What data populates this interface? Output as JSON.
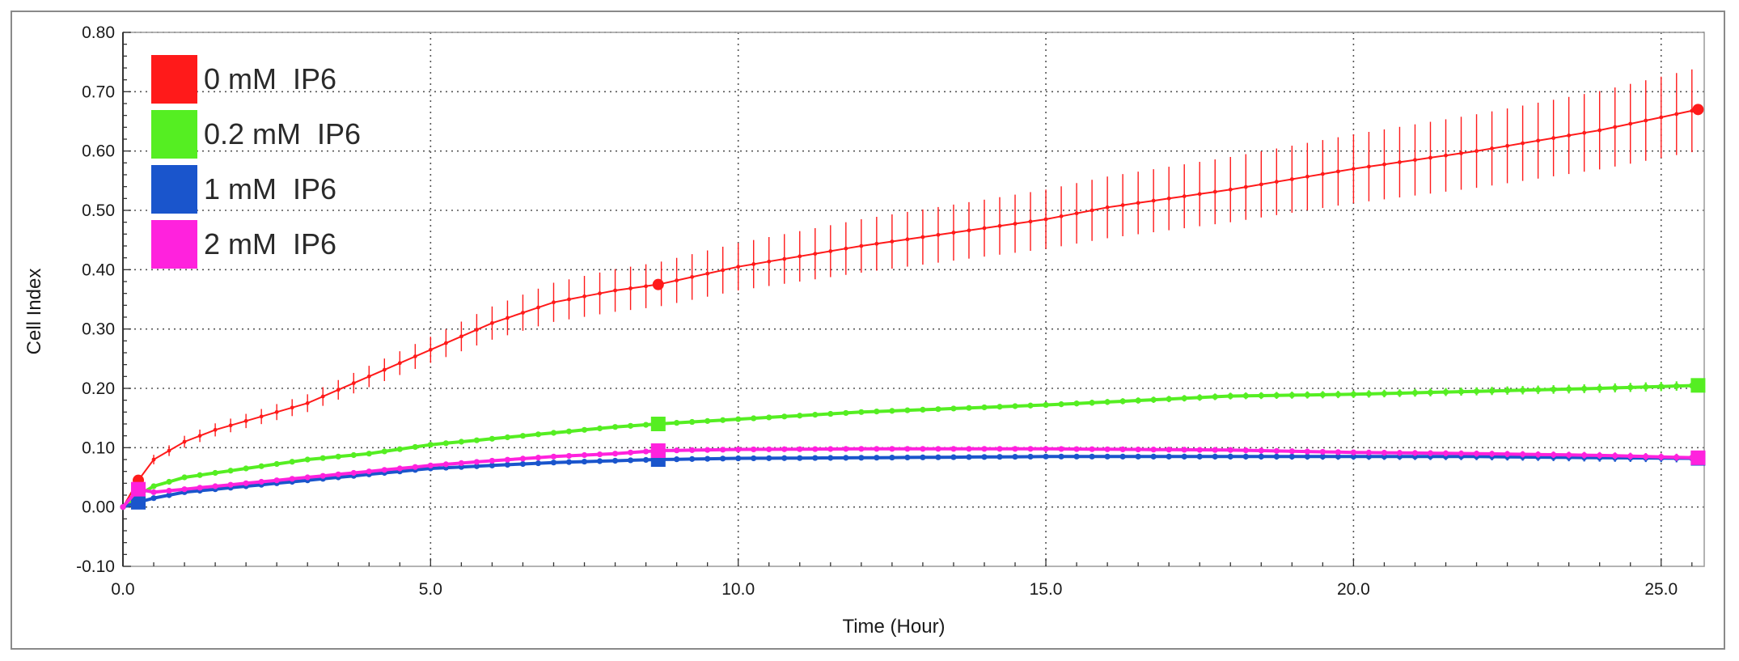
{
  "chart_data": {
    "type": "line",
    "title": "",
    "xlabel": "Time (Hour)",
    "ylabel": "Cell Index",
    "xlim": [
      0,
      25.7
    ],
    "ylim": [
      -0.1,
      0.8
    ],
    "x_ticks": [
      0,
      5,
      10,
      15,
      20,
      25
    ],
    "x_tick_labels": [
      "0.0",
      "5.0",
      "10.0",
      "15.0",
      "20.0",
      "25.0"
    ],
    "y_ticks": [
      -0.1,
      0,
      0.1,
      0.2,
      0.3,
      0.4,
      0.5,
      0.6,
      0.7,
      0.8
    ],
    "y_tick_labels": [
      "-0.10",
      "0.00",
      "0.10",
      "0.20",
      "0.30",
      "0.40",
      "0.50",
      "0.60",
      "0.70",
      "0.80"
    ],
    "grid": true,
    "grid_style": "dotted",
    "legend_position": "top-left",
    "series": [
      {
        "name": "0 mM  IP6",
        "color": "#ff1a1a",
        "points": [
          [
            0,
            0
          ],
          [
            0.25,
            0.045
          ],
          [
            0.5,
            0.08
          ],
          [
            1,
            0.11
          ],
          [
            1.5,
            0.13
          ],
          [
            2,
            0.145
          ],
          [
            3,
            0.175
          ],
          [
            4,
            0.22
          ],
          [
            5,
            0.265
          ],
          [
            6,
            0.31
          ],
          [
            7,
            0.345
          ],
          [
            8,
            0.365
          ],
          [
            8.7,
            0.375
          ],
          [
            10,
            0.405
          ],
          [
            12,
            0.44
          ],
          [
            14,
            0.47
          ],
          [
            15,
            0.485
          ],
          [
            16,
            0.505
          ],
          [
            18,
            0.535
          ],
          [
            20,
            0.57
          ],
          [
            22,
            0.6
          ],
          [
            24,
            0.635
          ],
          [
            25.6,
            0.67
          ]
        ],
        "error": [
          [
            0,
            0
          ],
          [
            0.25,
            0.005
          ],
          [
            0.5,
            0.008
          ],
          [
            1,
            0.01
          ],
          [
            2,
            0.012
          ],
          [
            3,
            0.015
          ],
          [
            4,
            0.018
          ],
          [
            5,
            0.022
          ],
          [
            6,
            0.028
          ],
          [
            7,
            0.033
          ],
          [
            8,
            0.036
          ],
          [
            10,
            0.04
          ],
          [
            12,
            0.045
          ],
          [
            14,
            0.048
          ],
          [
            16,
            0.052
          ],
          [
            18,
            0.055
          ],
          [
            20,
            0.058
          ],
          [
            22,
            0.062
          ],
          [
            24,
            0.066
          ],
          [
            25.6,
            0.07
          ]
        ]
      },
      {
        "name": "0.2 mM  IP6",
        "color": "#55ee22",
        "points": [
          [
            0,
            0
          ],
          [
            0.25,
            0.02
          ],
          [
            0.5,
            0.035
          ],
          [
            1,
            0.05
          ],
          [
            2,
            0.065
          ],
          [
            3,
            0.08
          ],
          [
            4,
            0.09
          ],
          [
            5,
            0.105
          ],
          [
            6,
            0.115
          ],
          [
            7,
            0.125
          ],
          [
            8,
            0.135
          ],
          [
            8.7,
            0.14
          ],
          [
            10,
            0.148
          ],
          [
            12,
            0.16
          ],
          [
            14,
            0.168
          ],
          [
            15,
            0.172
          ],
          [
            16,
            0.177
          ],
          [
            18,
            0.187
          ],
          [
            20,
            0.19
          ],
          [
            22,
            0.195
          ],
          [
            24,
            0.2
          ],
          [
            25.6,
            0.205
          ]
        ],
        "error": [
          [
            0,
            0
          ],
          [
            25.6,
            0.008
          ]
        ]
      },
      {
        "name": "1 mM  IP6",
        "color": "#1a55cc",
        "points": [
          [
            0,
            0
          ],
          [
            0.25,
            0.008
          ],
          [
            0.5,
            0.015
          ],
          [
            1,
            0.025
          ],
          [
            2,
            0.035
          ],
          [
            3,
            0.045
          ],
          [
            4,
            0.055
          ],
          [
            5,
            0.065
          ],
          [
            6,
            0.07
          ],
          [
            7,
            0.075
          ],
          [
            8,
            0.078
          ],
          [
            8.7,
            0.08
          ],
          [
            10,
            0.082
          ],
          [
            12,
            0.083
          ],
          [
            15,
            0.085
          ],
          [
            18,
            0.085
          ],
          [
            20,
            0.085
          ],
          [
            22,
            0.085
          ],
          [
            24,
            0.083
          ],
          [
            25.6,
            0.082
          ]
        ],
        "error": [
          [
            0,
            0
          ],
          [
            25.6,
            0.007
          ]
        ]
      },
      {
        "name": "2 mM  IP6",
        "color": "#ff22dd",
        "points": [
          [
            0,
            0
          ],
          [
            0.25,
            0.03
          ],
          [
            0.5,
            0.025
          ],
          [
            1,
            0.03
          ],
          [
            2,
            0.04
          ],
          [
            3,
            0.05
          ],
          [
            4,
            0.06
          ],
          [
            5,
            0.07
          ],
          [
            6,
            0.078
          ],
          [
            7,
            0.085
          ],
          [
            8,
            0.09
          ],
          [
            8.7,
            0.095
          ],
          [
            10,
            0.097
          ],
          [
            12,
            0.098
          ],
          [
            15,
            0.098
          ],
          [
            18,
            0.096
          ],
          [
            20,
            0.092
          ],
          [
            22,
            0.09
          ],
          [
            24,
            0.087
          ],
          [
            25.6,
            0.083
          ]
        ],
        "error": [
          [
            0,
            0
          ],
          [
            25.6,
            0.006
          ]
        ]
      }
    ]
  }
}
